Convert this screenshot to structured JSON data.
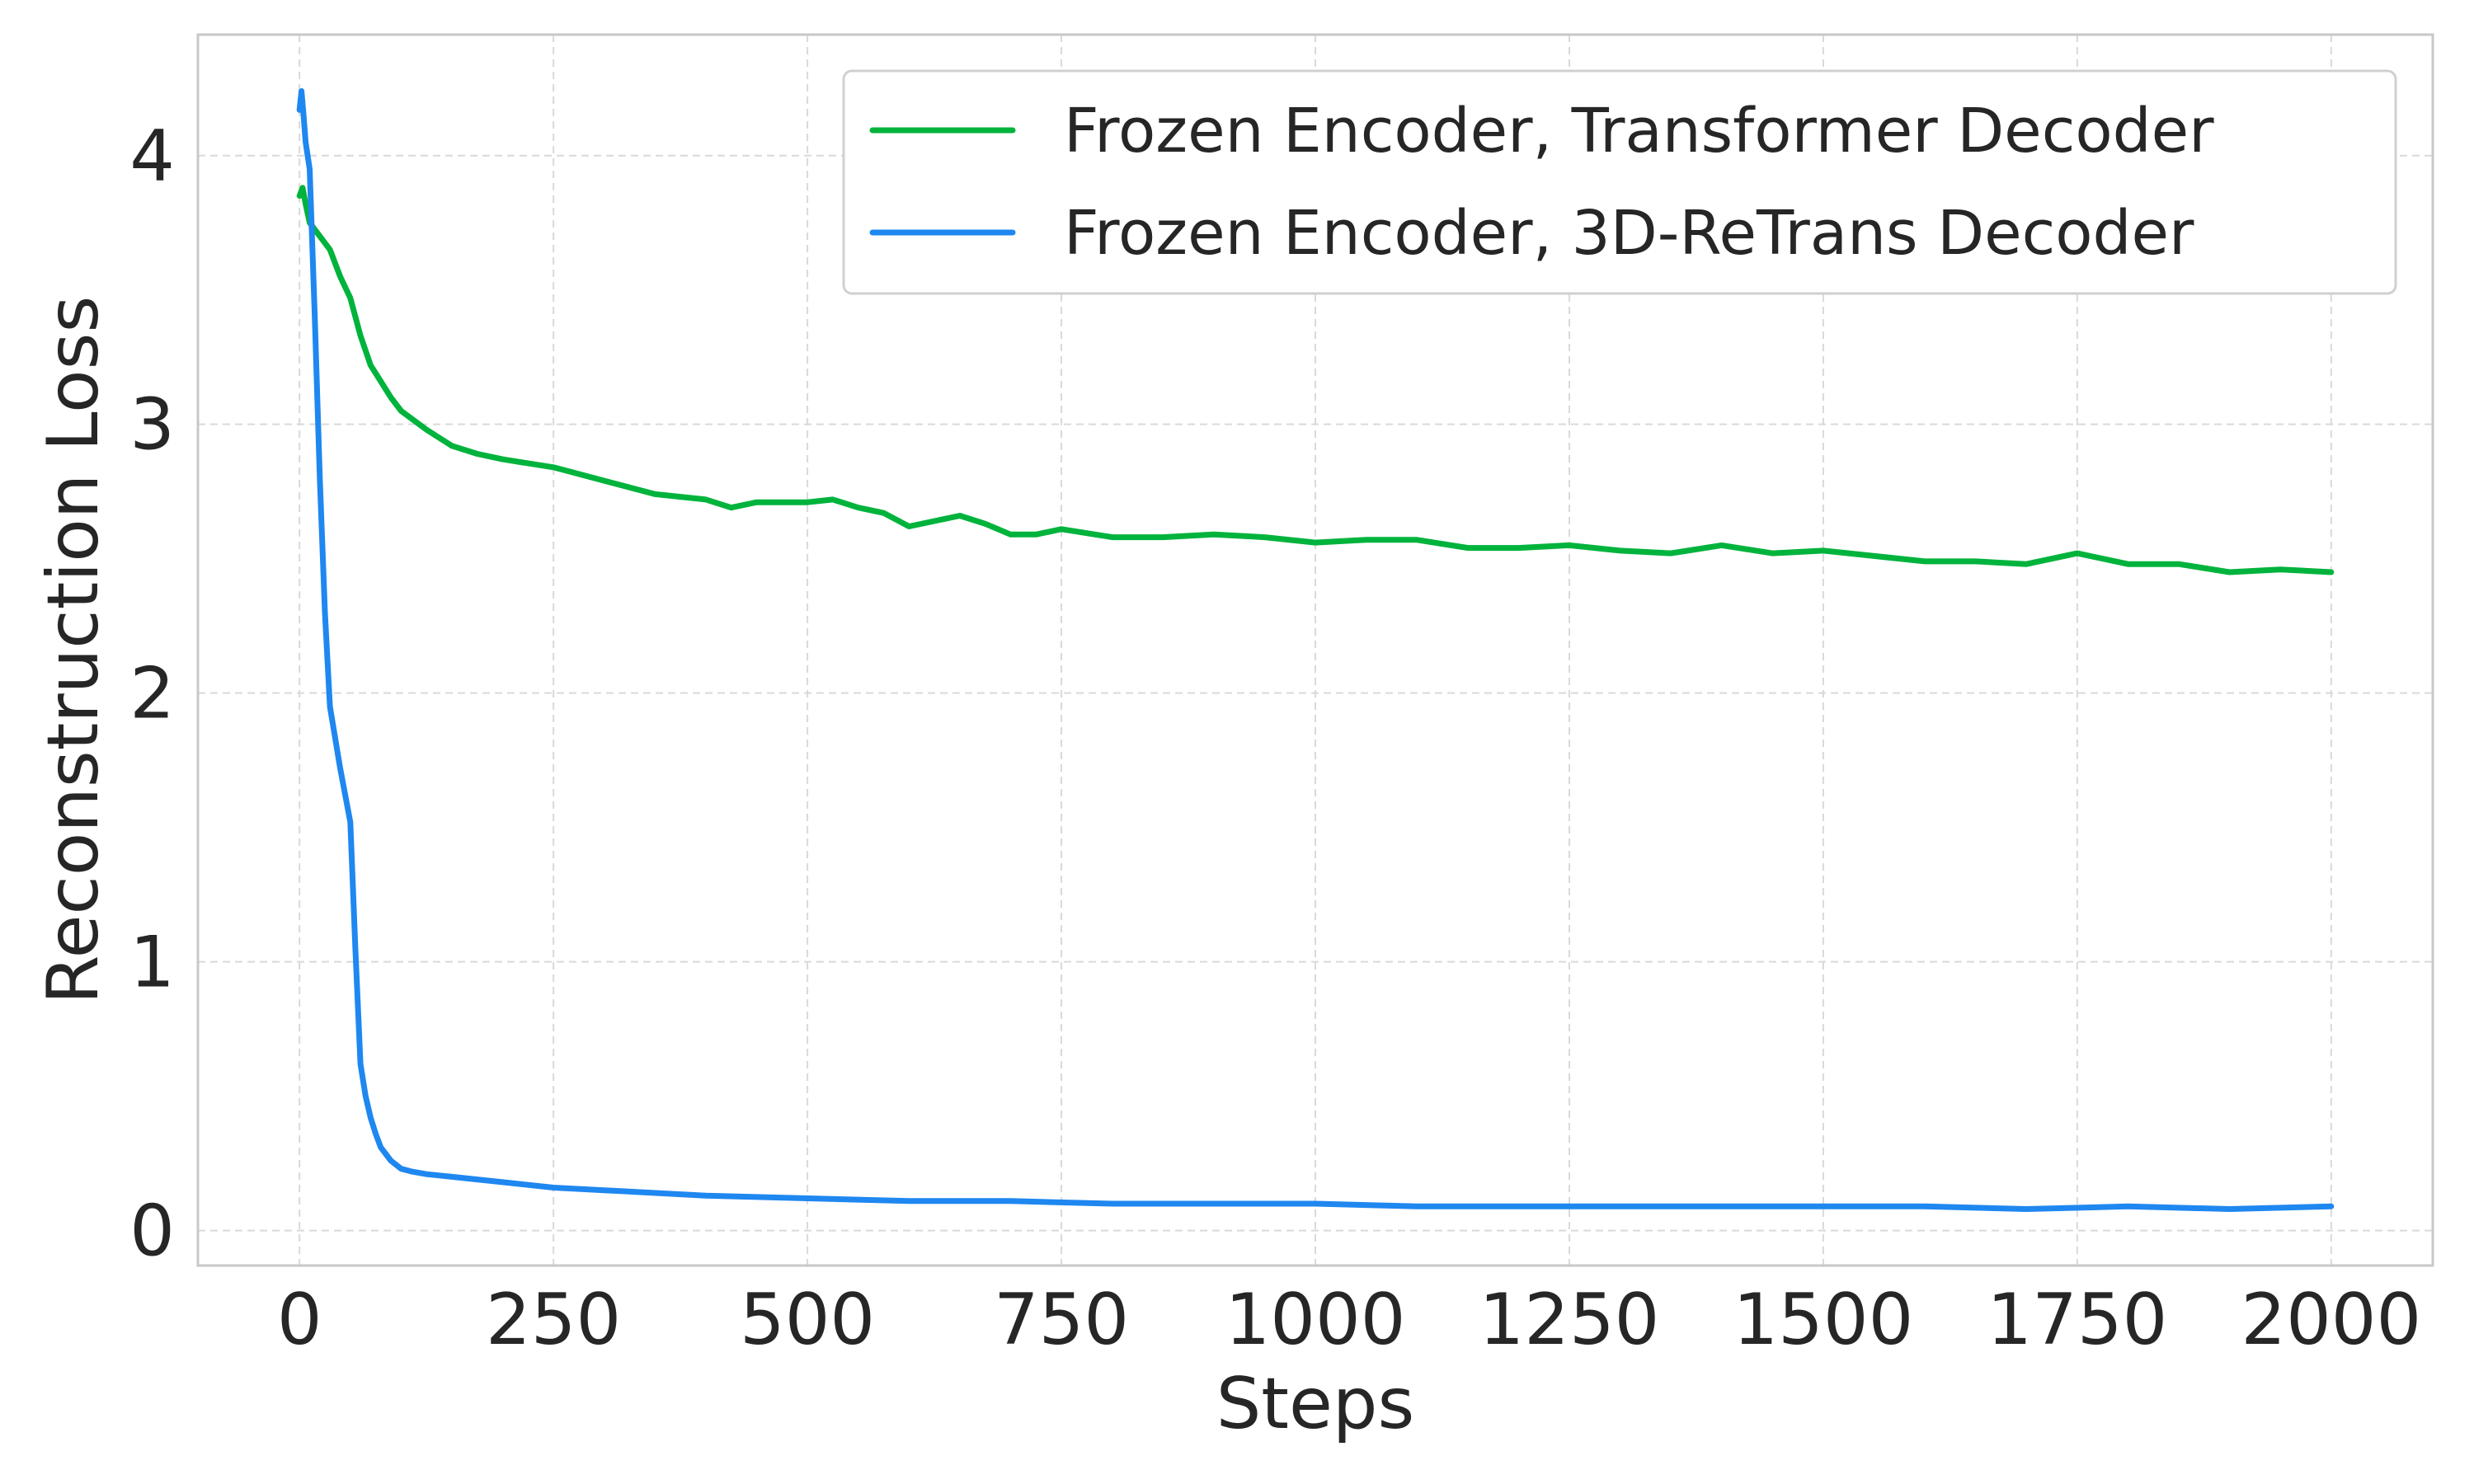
{
  "chart_data": {
    "type": "line",
    "xlabel": "Steps",
    "ylabel": "Reconstruction Loss",
    "xlim": [
      -100,
      2100
    ],
    "ylim": [
      -0.13,
      4.45
    ],
    "xticks": [
      0,
      250,
      500,
      750,
      1000,
      1250,
      1500,
      1750,
      2000
    ],
    "yticks": [
      0,
      1,
      2,
      3,
      4
    ],
    "grid": true,
    "legend_position": "top-right",
    "series": [
      {
        "name": "Frozen Encoder, Transformer Decoder",
        "color": "#00b33c",
        "x": [
          0,
          3,
          6,
          10,
          20,
          30,
          40,
          50,
          60,
          70,
          80,
          90,
          100,
          125,
          150,
          175,
          200,
          250,
          300,
          350,
          400,
          425,
          450,
          500,
          525,
          550,
          575,
          600,
          625,
          650,
          675,
          700,
          725,
          750,
          800,
          850,
          900,
          950,
          1000,
          1050,
          1100,
          1150,
          1200,
          1250,
          1300,
          1350,
          1400,
          1450,
          1500,
          1550,
          1600,
          1650,
          1700,
          1750,
          1800,
          1850,
          1900,
          1950,
          2000
        ],
        "values": [
          3.85,
          3.88,
          3.82,
          3.75,
          3.7,
          3.65,
          3.55,
          3.47,
          3.33,
          3.22,
          3.16,
          3.1,
          3.05,
          2.98,
          2.92,
          2.89,
          2.87,
          2.84,
          2.79,
          2.74,
          2.72,
          2.69,
          2.71,
          2.71,
          2.72,
          2.69,
          2.67,
          2.62,
          2.64,
          2.66,
          2.63,
          2.59,
          2.59,
          2.61,
          2.58,
          2.58,
          2.59,
          2.58,
          2.56,
          2.57,
          2.57,
          2.54,
          2.54,
          2.55,
          2.53,
          2.52,
          2.55,
          2.52,
          2.53,
          2.51,
          2.49,
          2.49,
          2.48,
          2.52,
          2.48,
          2.48,
          2.45,
          2.46,
          2.45
        ]
      },
      {
        "name": "Frozen Encoder, 3D-ReTrans Decoder",
        "color": "#1f87f0",
        "x": [
          0,
          2,
          4,
          6,
          10,
          15,
          20,
          25,
          30,
          40,
          50,
          55,
          60,
          65,
          70,
          75,
          80,
          90,
          100,
          110,
          125,
          150,
          200,
          250,
          300,
          400,
          500,
          600,
          700,
          800,
          900,
          1000,
          1100,
          1200,
          1300,
          1400,
          1500,
          1600,
          1700,
          1800,
          1900,
          2000
        ],
        "values": [
          4.17,
          4.24,
          4.15,
          4.05,
          3.95,
          3.4,
          2.8,
          2.3,
          1.95,
          1.72,
          1.52,
          1.05,
          0.62,
          0.5,
          0.42,
          0.36,
          0.31,
          0.26,
          0.23,
          0.22,
          0.21,
          0.2,
          0.18,
          0.16,
          0.15,
          0.13,
          0.12,
          0.11,
          0.11,
          0.1,
          0.1,
          0.1,
          0.09,
          0.09,
          0.09,
          0.09,
          0.09,
          0.09,
          0.08,
          0.09,
          0.08,
          0.09
        ]
      }
    ]
  }
}
